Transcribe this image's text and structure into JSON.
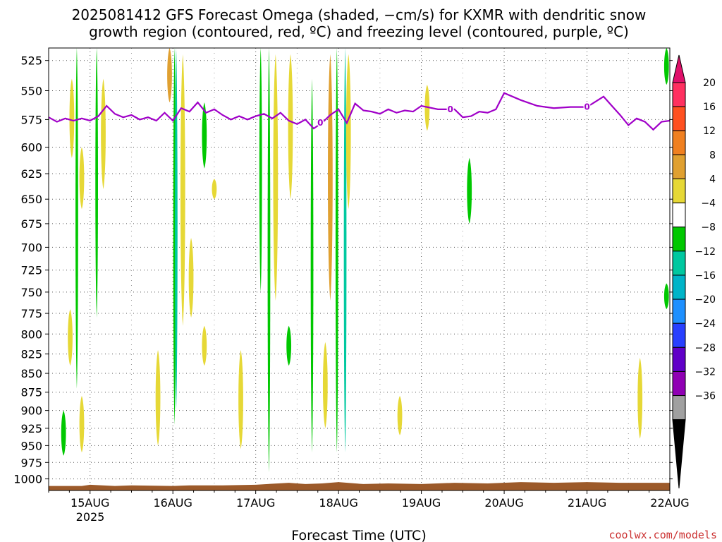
{
  "chart_data": {
    "type": "heatmap",
    "title_line1": "2025081412 GFS Forecast Omega (shaded, −cm/s) for KXMR with dendritic snow",
    "title_line2": "growth region (contoured, red, ºC) and freezing level (contoured, purple, ºC)",
    "xlabel": "Forecast Time (UTC)",
    "credit": "coolwx.com/models",
    "x_ticks": [
      "15AUG",
      "16AUG",
      "17AUG",
      "18AUG",
      "19AUG",
      "20AUG",
      "21AUG",
      "22AUG"
    ],
    "x_tick_year": "2025",
    "x_range_days": [
      14.5,
      22.0
    ],
    "y_ticks": [
      525,
      550,
      575,
      600,
      625,
      650,
      675,
      700,
      725,
      750,
      775,
      800,
      825,
      850,
      875,
      900,
      925,
      950,
      975,
      1000
    ],
    "y_range_hpa": [
      515,
      1018
    ],
    "y_axis": "pressure (hPa, log scale, inverted)",
    "grid": true,
    "colorbar": {
      "labels": [
        "20",
        "16",
        "12",
        "8",
        "4",
        "−4",
        "−8",
        "−12",
        "−16",
        "−20",
        "−24",
        "−28",
        "−32",
        "−36"
      ],
      "colors": [
        "#ff3060",
        "#ff5020",
        "#f08020",
        "#e0a030",
        "#e6d836",
        "#ffffff",
        "#00c800",
        "#00c8a0",
        "#00b4c8",
        "#1e90ff",
        "#2840ff",
        "#6000c8",
        "#9000b4",
        "#a0a0a0"
      ],
      "top_color": "#e0106a",
      "bottom_color": "#000000"
    },
    "omega_colors": {
      "yellow": "#e6d836",
      "gold": "#e0a030",
      "green": "#00c800",
      "teal": "#00c8a0",
      "cyan": "#00b4c8"
    },
    "omega_features": [
      {
        "day": 14.68,
        "p_top": 900,
        "p_bot": 965,
        "color": "green"
      },
      {
        "day": 14.76,
        "p_top": 770,
        "p_bot": 840,
        "color": "yellow"
      },
      {
        "day": 14.78,
        "p_top": 540,
        "p_bot": 610,
        "color": "yellow"
      },
      {
        "day": 14.84,
        "p_top": 515,
        "p_bot": 870,
        "color": "green"
      },
      {
        "day": 14.9,
        "p_top": 600,
        "p_bot": 660,
        "color": "yellow"
      },
      {
        "day": 14.9,
        "p_top": 880,
        "p_bot": 960,
        "color": "yellow"
      },
      {
        "day": 15.08,
        "p_top": 515,
        "p_bot": 780,
        "color": "green"
      },
      {
        "day": 15.16,
        "p_top": 540,
        "p_bot": 640,
        "color": "yellow"
      },
      {
        "day": 15.82,
        "p_top": 820,
        "p_bot": 950,
        "color": "yellow"
      },
      {
        "day": 15.96,
        "p_top": 515,
        "p_bot": 560,
        "color": "gold"
      },
      {
        "day": 16.02,
        "p_top": 515,
        "p_bot": 920,
        "color": "green"
      },
      {
        "day": 16.04,
        "p_top": 515,
        "p_bot": 900,
        "color": "teal"
      },
      {
        "day": 16.12,
        "p_top": 520,
        "p_bot": 790,
        "color": "yellow"
      },
      {
        "day": 16.22,
        "p_top": 690,
        "p_bot": 780,
        "color": "yellow"
      },
      {
        "day": 16.38,
        "p_top": 560,
        "p_bot": 620,
        "color": "green"
      },
      {
        "day": 16.38,
        "p_top": 790,
        "p_bot": 840,
        "color": "yellow"
      },
      {
        "day": 16.5,
        "p_top": 630,
        "p_bot": 650,
        "color": "yellow"
      },
      {
        "day": 16.82,
        "p_top": 820,
        "p_bot": 955,
        "color": "yellow"
      },
      {
        "day": 17.06,
        "p_top": 515,
        "p_bot": 750,
        "color": "green"
      },
      {
        "day": 17.16,
        "p_top": 515,
        "p_bot": 990,
        "color": "green"
      },
      {
        "day": 17.24,
        "p_top": 520,
        "p_bot": 760,
        "color": "yellow"
      },
      {
        "day": 17.4,
        "p_top": 790,
        "p_bot": 840,
        "color": "green"
      },
      {
        "day": 17.42,
        "p_top": 520,
        "p_bot": 650,
        "color": "yellow"
      },
      {
        "day": 17.68,
        "p_top": 540,
        "p_bot": 960,
        "color": "green"
      },
      {
        "day": 17.84,
        "p_top": 810,
        "p_bot": 925,
        "color": "yellow"
      },
      {
        "day": 17.9,
        "p_top": 520,
        "p_bot": 760,
        "color": "gold"
      },
      {
        "day": 17.98,
        "p_top": 515,
        "p_bot": 960,
        "color": "green"
      },
      {
        "day": 18.08,
        "p_top": 515,
        "p_bot": 960,
        "color": "teal"
      },
      {
        "day": 18.12,
        "p_top": 520,
        "p_bot": 660,
        "color": "yellow"
      },
      {
        "day": 18.74,
        "p_top": 880,
        "p_bot": 935,
        "color": "yellow"
      },
      {
        "day": 19.07,
        "p_top": 545,
        "p_bot": 585,
        "color": "yellow"
      },
      {
        "day": 19.58,
        "p_top": 610,
        "p_bot": 675,
        "color": "green"
      },
      {
        "day": 21.64,
        "p_top": 830,
        "p_bot": 940,
        "color": "yellow"
      },
      {
        "day": 21.96,
        "p_top": 515,
        "p_bot": 545,
        "color": "green"
      },
      {
        "day": 21.96,
        "p_top": 740,
        "p_bot": 770,
        "color": "green"
      }
    ],
    "freezing_level": {
      "color": "#a000c8",
      "label": "0",
      "points": [
        [
          14.5,
          573
        ],
        [
          14.6,
          577
        ],
        [
          14.7,
          574
        ],
        [
          14.8,
          576
        ],
        [
          14.9,
          574
        ],
        [
          15.0,
          576
        ],
        [
          15.1,
          572
        ],
        [
          15.2,
          563
        ],
        [
          15.3,
          570
        ],
        [
          15.4,
          573
        ],
        [
          15.5,
          571
        ],
        [
          15.6,
          575
        ],
        [
          15.7,
          573
        ],
        [
          15.8,
          576
        ],
        [
          15.9,
          569
        ],
        [
          16.0,
          576
        ],
        [
          16.1,
          565
        ],
        [
          16.2,
          568
        ],
        [
          16.3,
          560
        ],
        [
          16.4,
          569
        ],
        [
          16.5,
          566
        ],
        [
          16.6,
          571
        ],
        [
          16.7,
          575
        ],
        [
          16.8,
          572
        ],
        [
          16.9,
          575
        ],
        [
          17.0,
          572
        ],
        [
          17.1,
          570
        ],
        [
          17.2,
          574
        ],
        [
          17.3,
          569
        ],
        [
          17.4,
          576
        ],
        [
          17.5,
          579
        ],
        [
          17.6,
          575
        ],
        [
          17.7,
          583
        ],
        [
          17.8,
          578
        ],
        [
          17.9,
          571
        ],
        [
          18.0,
          566
        ],
        [
          18.1,
          578
        ],
        [
          18.2,
          561
        ],
        [
          18.3,
          567
        ],
        [
          18.4,
          568
        ],
        [
          18.5,
          570
        ],
        [
          18.6,
          566
        ],
        [
          18.7,
          569
        ],
        [
          18.8,
          567
        ],
        [
          18.9,
          568
        ],
        [
          19.0,
          563
        ],
        [
          19.2,
          566
        ],
        [
          19.4,
          566
        ],
        [
          19.5,
          573
        ],
        [
          19.6,
          572
        ],
        [
          19.7,
          568
        ],
        [
          19.8,
          569
        ],
        [
          19.9,
          566
        ],
        [
          20.0,
          552
        ],
        [
          20.2,
          558
        ],
        [
          20.4,
          563
        ],
        [
          20.6,
          565
        ],
        [
          20.8,
          564
        ],
        [
          21.0,
          564
        ],
        [
          21.2,
          555
        ],
        [
          21.3,
          563
        ],
        [
          21.4,
          571
        ],
        [
          21.5,
          580
        ],
        [
          21.6,
          574
        ],
        [
          21.7,
          577
        ],
        [
          21.8,
          584
        ],
        [
          21.9,
          577
        ],
        [
          22.0,
          576
        ]
      ]
    },
    "terrain": {
      "color": "#9c5a2a",
      "points": [
        [
          14.5,
          1011
        ],
        [
          14.9,
          1011
        ],
        [
          15.0,
          1009
        ],
        [
          15.3,
          1011
        ],
        [
          15.5,
          1010
        ],
        [
          16.0,
          1011
        ],
        [
          16.2,
          1010
        ],
        [
          16.6,
          1010
        ],
        [
          17.0,
          1009
        ],
        [
          17.4,
          1006
        ],
        [
          17.6,
          1008
        ],
        [
          17.8,
          1007
        ],
        [
          18.0,
          1005
        ],
        [
          18.3,
          1008
        ],
        [
          18.6,
          1007
        ],
        [
          19.0,
          1008
        ],
        [
          19.4,
          1006
        ],
        [
          19.8,
          1007
        ],
        [
          20.2,
          1005
        ],
        [
          20.6,
          1006
        ],
        [
          21.0,
          1005
        ],
        [
          21.4,
          1006
        ],
        [
          21.8,
          1006
        ],
        [
          22.0,
          1006
        ]
      ]
    }
  }
}
